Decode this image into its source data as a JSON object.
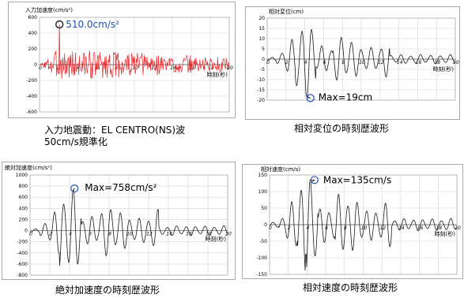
{
  "chart_data": [
    {
      "type": "line",
      "id": "panel-1",
      "ylabel": "入力加速度(cm/s²)",
      "xlabel": "時刻(秒)",
      "ylim": [
        -600,
        600
      ],
      "yticks": [
        -600,
        -400,
        -200,
        0,
        200,
        400,
        600
      ],
      "xlim": [
        0,
        20
      ],
      "xticks": [
        0,
        2,
        4,
        6,
        8,
        10,
        12,
        14,
        16,
        18,
        20
      ],
      "series": [
        {
          "color": "#e8262a",
          "peak": {
            "x": 2.1,
            "y": 510
          }
        }
      ],
      "annotation": {
        "text": "510.0cm/s²",
        "color": "#1f4fb0",
        "marker_color": "#000000"
      },
      "caption": [
        "入力地震動：EL CENTRO(NS)波",
        "50cm/s規準化"
      ],
      "seed": 3
    },
    {
      "type": "line",
      "id": "panel-2",
      "ylabel": "相対変位(cm)",
      "xlabel": "時刻(秒)",
      "ylim": [
        -20,
        20
      ],
      "yticks": [
        -20,
        -15,
        -10,
        -5,
        0,
        5,
        10,
        15,
        20
      ],
      "xlim": [
        0,
        20
      ],
      "xticks": [
        0,
        2,
        4,
        6,
        8,
        10,
        12,
        14,
        16,
        18,
        20
      ],
      "series": [
        {
          "color": "#1a1a1a",
          "peak": {
            "x": 4.6,
            "y": -19
          }
        }
      ],
      "annotation": {
        "text": "Max=19cm",
        "color": "#000000",
        "marker_color": "#1f4fb0"
      },
      "caption": [
        "相対変位の時刻歴波形"
      ],
      "seed": 11
    },
    {
      "type": "line",
      "id": "panel-3",
      "ylabel": "絶対加速度(cm/s²)",
      "xlabel": "時刻(秒)",
      "ylim": [
        -800,
        1000
      ],
      "yticks": [
        -800,
        -600,
        -400,
        -200,
        0,
        200,
        400,
        600,
        800,
        1000
      ],
      "xlim": [
        0,
        20
      ],
      "xticks": [
        0,
        2,
        4,
        6,
        8,
        10,
        12,
        14,
        16,
        18,
        20
      ],
      "series": [
        {
          "color": "#1a1a1a",
          "peak": {
            "x": 4.5,
            "y": 758
          }
        }
      ],
      "annotation": {
        "text": "Max=758cm/s²",
        "color": "#000000",
        "marker_color": "#1f4fb0"
      },
      "caption": [
        "絶対加速度の時刻歴波形"
      ],
      "seed": 23
    },
    {
      "type": "line",
      "id": "panel-4",
      "ylabel": "相対速度(cm/s)",
      "xlabel": "時刻(秒)",
      "ylim": [
        -150,
        150
      ],
      "yticks": [
        -150,
        -100,
        -50,
        0,
        50,
        100,
        150
      ],
      "xlim": [
        0,
        20
      ],
      "xticks": [
        0,
        2,
        4,
        6,
        8,
        10,
        12,
        14,
        16,
        18,
        20
      ],
      "series": [
        {
          "color": "#1a1a1a",
          "peak": {
            "x": 4.8,
            "y": 135
          }
        }
      ],
      "annotation": {
        "text": "Max=135cm/s",
        "color": "#000000",
        "marker_color": "#1f4fb0"
      },
      "caption": [
        "相対速度の時刻歴波形"
      ],
      "seed": 37
    }
  ]
}
